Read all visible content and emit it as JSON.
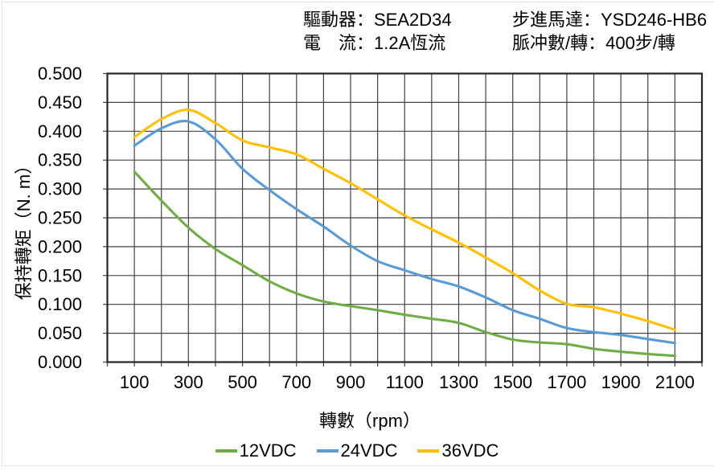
{
  "header": {
    "driver": "驅動器：SEA2D34",
    "motor": "步進馬達：YSD246-HB6",
    "current": "電　流：1.2A恆流",
    "pulses": "脈冲數/轉：400步/轉"
  },
  "chart_data": {
    "type": "line",
    "title": "",
    "xlabel": "轉數（rpm）",
    "ylabel": "保持轉矩（N. m）",
    "x": [
      100,
      200,
      300,
      400,
      500,
      600,
      700,
      800,
      900,
      1000,
      1100,
      1200,
      1300,
      1400,
      1500,
      1600,
      1700,
      1800,
      1900,
      2000,
      2100
    ],
    "series": [
      {
        "name": "12VDC",
        "color": "#70AD47",
        "values": [
          0.33,
          0.28,
          0.233,
          0.196,
          0.168,
          0.14,
          0.119,
          0.105,
          0.097,
          0.09,
          0.082,
          0.075,
          0.068,
          0.052,
          0.039,
          0.034,
          0.031,
          0.023,
          0.018,
          0.014,
          0.011
        ]
      },
      {
        "name": "24VDC",
        "color": "#5B9BD5",
        "values": [
          0.375,
          0.405,
          0.417,
          0.386,
          0.335,
          0.298,
          0.265,
          0.235,
          0.202,
          0.175,
          0.159,
          0.144,
          0.131,
          0.112,
          0.09,
          0.075,
          0.059,
          0.052,
          0.047,
          0.04,
          0.033
        ]
      },
      {
        "name": "36VDC",
        "color": "#FFC000",
        "values": [
          0.39,
          0.421,
          0.437,
          0.414,
          0.384,
          0.372,
          0.36,
          0.335,
          0.31,
          0.282,
          0.254,
          0.23,
          0.207,
          0.181,
          0.154,
          0.124,
          0.101,
          0.095,
          0.084,
          0.071,
          0.056
        ]
      }
    ],
    "xlim": [
      0,
      2200
    ],
    "ylim": [
      0.0,
      0.5
    ],
    "x_tick_labels": [
      "100",
      "300",
      "500",
      "700",
      "900",
      "1100",
      "1300",
      "1500",
      "1700",
      "1900",
      "2100"
    ],
    "y_tick_labels": [
      "0.000",
      "0.050",
      "0.100",
      "0.150",
      "0.200",
      "0.250",
      "0.300",
      "0.350",
      "0.400",
      "0.450",
      "0.500"
    ],
    "grid": "both, every 100 rpm and every 0.050 N.m",
    "legend_position": "bottom"
  }
}
